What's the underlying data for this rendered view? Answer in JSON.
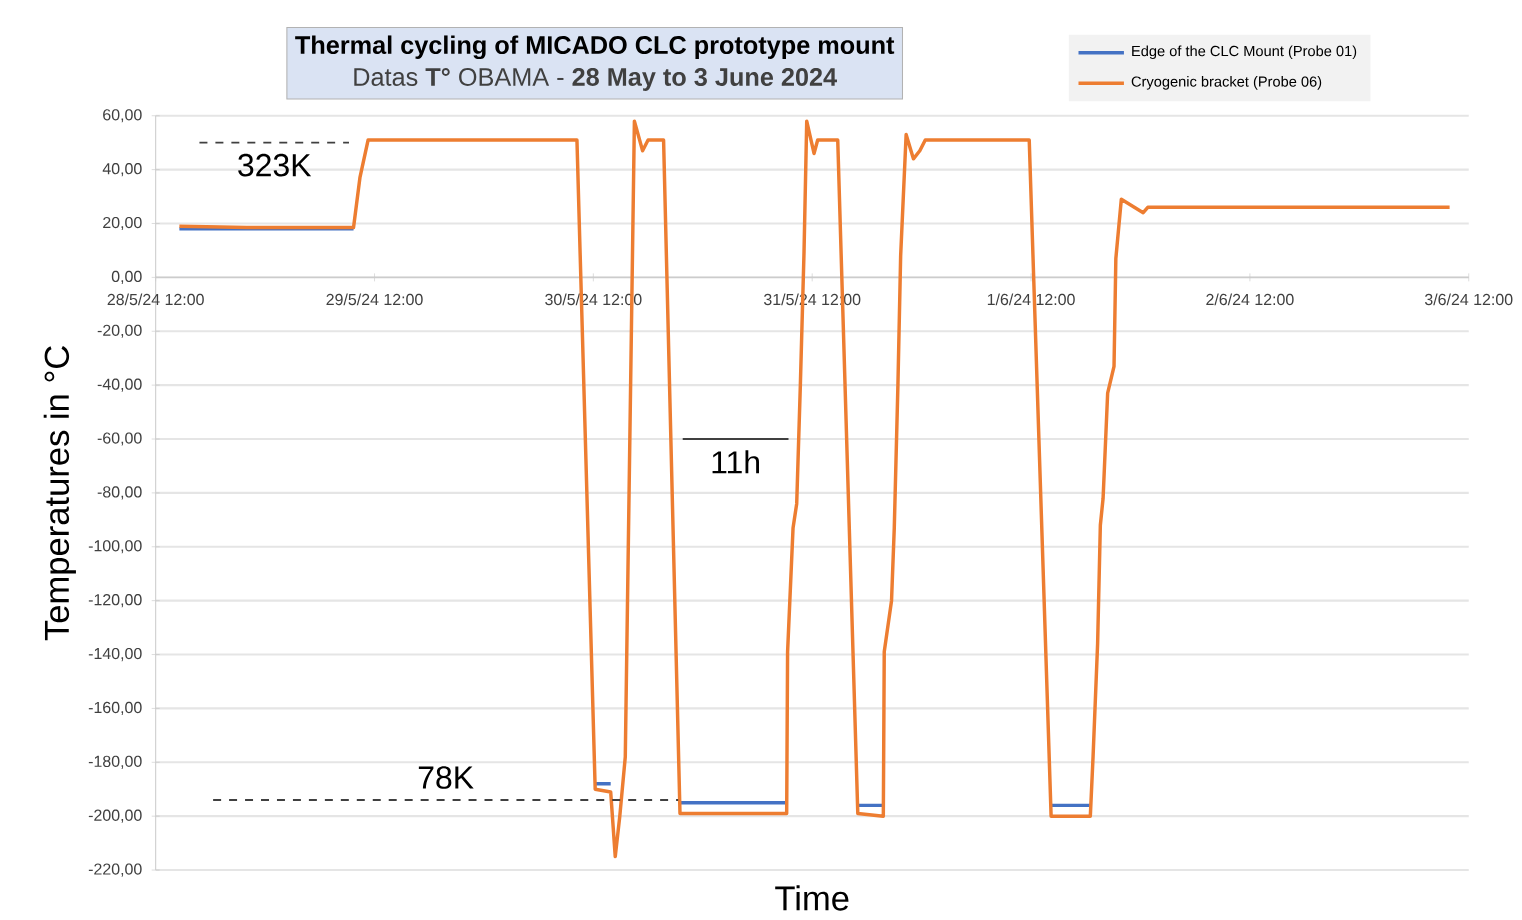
{
  "chart_data": {
    "type": "line",
    "title": "**Thermal cycling of MICADO CLC prototype mount**",
    "subtitle": "Datas **T°** OBAMA - **28 May to 3 June 2024**",
    "xlabel": "Time",
    "ylabel": "Temperatures in °C",
    "xlim": [
      "2024-05-28T12:00",
      "2024-06-03T12:00"
    ],
    "xticks": [
      {
        "value": "2024-05-28T12:00",
        "label": "28/5/24 12:00"
      },
      {
        "value": "2024-05-29T12:00",
        "label": "29/5/24 12:00"
      },
      {
        "value": "2024-05-30T12:00",
        "label": "30/5/24 12:00"
      },
      {
        "value": "2024-05-31T12:00",
        "label": "31/5/24 12:00"
      },
      {
        "value": "2024-06-01T12:00",
        "label": "1/6/24 12:00"
      },
      {
        "value": "2024-06-02T12:00",
        "label": "2/6/24 12:00"
      },
      {
        "value": "2024-06-03T12:00",
        "label": "3/6/24 12:00"
      }
    ],
    "ylim": [
      -220,
      60
    ],
    "yticks": [
      {
        "value": 60,
        "label": "60,00"
      },
      {
        "value": 40,
        "label": "40,00"
      },
      {
        "value": 20,
        "label": "20,00"
      },
      {
        "value": 0,
        "label": "0,00"
      },
      {
        "value": -20,
        "label": "-20,00"
      },
      {
        "value": -40,
        "label": "-40,00"
      },
      {
        "value": -60,
        "label": "-60,00"
      },
      {
        "value": -80,
        "label": "-80,00"
      },
      {
        "value": -100,
        "label": "-100,00"
      },
      {
        "value": -120,
        "label": "-120,00"
      },
      {
        "value": -140,
        "label": "-140,00"
      },
      {
        "value": -160,
        "label": "-160,00"
      },
      {
        "value": -180,
        "label": "-180,00"
      },
      {
        "value": -200,
        "label": "-200,00"
      },
      {
        "value": -220,
        "label": "-220,00"
      }
    ],
    "grid": "y",
    "legend": "top right",
    "x": [
      "2024-05-28T14:36",
      "2024-05-28T22:00",
      "2024-05-29T09:42",
      "2024-05-29T10:24",
      "2024-05-29T11:18",
      "2024-05-30T10:12",
      "2024-05-30T12:12",
      "2024-05-30T13:54",
      "2024-05-30T14:24",
      "2024-05-30T14:54",
      "2024-05-30T15:30",
      "2024-05-30T16:30",
      "2024-05-30T17:24",
      "2024-05-30T18:00",
      "2024-05-30T19:42",
      "2024-05-30T21:30",
      "2024-05-31T09:12",
      "2024-05-31T09:18",
      "2024-05-31T09:54",
      "2024-05-31T10:18",
      "2024-05-31T10:42",
      "2024-05-31T11:06",
      "2024-05-31T11:24",
      "2024-05-31T12:12",
      "2024-05-31T12:36",
      "2024-05-31T14:48",
      "2024-05-31T17:00",
      "2024-05-31T19:48",
      "2024-05-31T19:54",
      "2024-05-31T20:42",
      "2024-05-31T21:00",
      "2024-05-31T21:24",
      "2024-05-31T21:42",
      "2024-05-31T22:18",
      "2024-05-31T23:06",
      "2024-05-31T23:48",
      "2024-06-01T00:24",
      "2024-06-01T11:48",
      "2024-06-01T14:12",
      "2024-06-01T18:30",
      "2024-06-01T18:48",
      "2024-06-01T19:18",
      "2024-06-01T19:36",
      "2024-06-01T19:54",
      "2024-06-01T20:24",
      "2024-06-01T21:06",
      "2024-06-01T21:18",
      "2024-06-01T21:54",
      "2024-06-02T00:18",
      "2024-06-02T00:48",
      "2024-06-03T09:54"
    ],
    "series": [
      {
        "name": "Edge of the CLC Mount (Probe 01)",
        "color": "#4472c4",
        "values": [
          18,
          18,
          18,
          null,
          null,
          null,
          -188,
          -188,
          null,
          null,
          null,
          null,
          null,
          null,
          null,
          -195,
          -195,
          null,
          null,
          null,
          null,
          null,
          null,
          null,
          null,
          null,
          -196,
          -196,
          null,
          null,
          null,
          null,
          null,
          null,
          null,
          null,
          null,
          null,
          -196,
          -196,
          null,
          null,
          null,
          null,
          null,
          null,
          null,
          null,
          null,
          null,
          null
        ]
      },
      {
        "name": "Cryogenic bracket (Probe 06)",
        "color": "#ed7d31",
        "values": [
          19,
          18.5,
          18.5,
          37,
          51,
          51,
          -190,
          -191,
          -215,
          -200,
          -178,
          58,
          47,
          51,
          51,
          -199,
          -199,
          -139,
          -93,
          -84,
          -40,
          9,
          58,
          46,
          51,
          51,
          -199,
          -200,
          -139,
          -120,
          -93,
          -40,
          8,
          53,
          44,
          47,
          51,
          51,
          -200,
          -200,
          -178,
          -136,
          -92,
          -82,
          -43,
          -33,
          7,
          29,
          24,
          26,
          26
        ]
      },
      {
        "type": "line",
        "name": "323K",
        "color": "#404040",
        "line_style": "dashed",
        "x": [
          "2024-05-28T16:48",
          "2024-05-29T09:12"
        ],
        "values": [
          50,
          50
        ]
      },
      {
        "type": "line",
        "name": "78K",
        "color": "#404040",
        "line_style": "dashed",
        "x": [
          "2024-05-28T18:18",
          "2024-05-30T21:18"
        ],
        "values": [
          -194,
          -194
        ]
      },
      {
        "type": "line",
        "name": "11h",
        "color": "#404040",
        "line_style": "solid",
        "x": [
          "2024-05-30T21:48",
          "2024-05-31T09:24"
        ],
        "values": [
          -60,
          -60
        ]
      }
    ]
  }
}
